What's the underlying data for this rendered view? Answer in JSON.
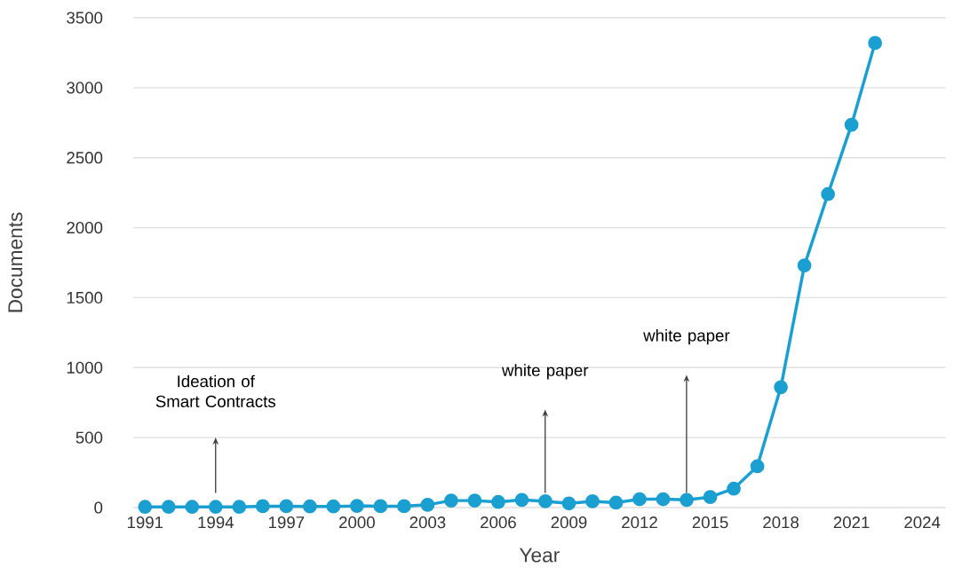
{
  "chart_data": {
    "type": "line",
    "xlabel": "Year",
    "ylabel": "Documents",
    "x": [
      1991,
      1992,
      1993,
      1994,
      1995,
      1996,
      1997,
      1998,
      1999,
      2000,
      2001,
      2002,
      2003,
      2004,
      2005,
      2006,
      2007,
      2008,
      2009,
      2010,
      2011,
      2012,
      2013,
      2014,
      2015,
      2016,
      2017,
      2018,
      2019,
      2020,
      2021,
      2022
    ],
    "series": [
      {
        "color": "#1a9fd0",
        "values": [
          5,
          5,
          5,
          5,
          5,
          10,
          10,
          8,
          8,
          12,
          10,
          10,
          20,
          50,
          50,
          40,
          55,
          45,
          30,
          45,
          35,
          60,
          60,
          55,
          75,
          135,
          295,
          860,
          1730,
          2240,
          2735,
          3320
        ]
      }
    ],
    "xlim": [
      1990.5,
      2025
    ],
    "ylim": [
      0,
      3500
    ],
    "xticks": [
      1991,
      1994,
      1997,
      2000,
      2003,
      2006,
      2009,
      2012,
      2015,
      2018,
      2021,
      2024
    ],
    "yticks": [
      0,
      500,
      1000,
      1500,
      2000,
      2500,
      3000,
      3500
    ],
    "grid": "y",
    "marker": "circle",
    "line_style": "solid",
    "annotations": [
      "Ideation of Smart Contracts",
      "white paper",
      "white paper"
    ]
  }
}
